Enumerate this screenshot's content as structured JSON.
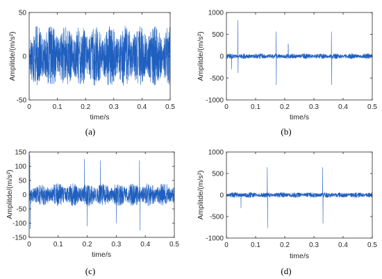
{
  "figure": {
    "signal_color": "#1f5fbf",
    "panels": [
      {
        "id": "a",
        "caption": "(a)",
        "ylabel": "Amplitde/(m/s²)",
        "xlabel": "time/s",
        "xticks": [
          "0",
          "0.1",
          "0.2",
          "0.3",
          "0.4",
          "0.5"
        ],
        "yticks": [
          "-50",
          "0",
          "50"
        ]
      },
      {
        "id": "b",
        "caption": "(b)",
        "ylabel": "Amplitde/(m/s²)",
        "xlabel": "time/s",
        "xticks": [
          "0",
          "0.1",
          "0.2",
          "0.3",
          "0.4",
          "0.5"
        ],
        "yticks": [
          "-1000",
          "-500",
          "0",
          "500",
          "1000"
        ]
      },
      {
        "id": "c",
        "caption": "(c)",
        "ylabel": "Amplitde/(m/s²)",
        "xlabel": "time/s",
        "xticks": [
          "0",
          "0.1",
          "0.2",
          "0.3",
          "0.4",
          "0.5"
        ],
        "yticks": [
          "-150",
          "-100",
          "-50",
          "0",
          "50",
          "100",
          "150"
        ]
      },
      {
        "id": "d",
        "caption": "(d)",
        "ylabel": "Amplitde/(m/s²)",
        "xlabel": "time/s",
        "xticks": [
          "0",
          "0.1",
          "0.2",
          "0.3",
          "0.4",
          "0.5"
        ],
        "yticks": [
          "-1000",
          "-500",
          "0",
          "500",
          "1000"
        ]
      }
    ]
  },
  "chart_data": [
    {
      "type": "line",
      "xlabel": "time/s",
      "ylabel": "Amplitde/(m/s²)",
      "xlim": [
        0,
        0.5
      ],
      "ylim": [
        -50,
        50
      ],
      "series": [
        {
          "noise_amplitude": 35,
          "impulses": []
        }
      ]
    },
    {
      "type": "line",
      "xlabel": "time/s",
      "ylabel": "Amplitde/(m/s²)",
      "xlim": [
        0,
        0.5
      ],
      "ylim": [
        -1000,
        1000
      ],
      "series": [
        {
          "noise_amplitude": 60,
          "impulses": [
            {
              "x": 0.018,
              "y": -300
            },
            {
              "x": 0.039,
              "y": 820
            },
            {
              "x": 0.04,
              "y": -380
            },
            {
              "x": 0.17,
              "y": 560
            },
            {
              "x": 0.171,
              "y": -650
            },
            {
              "x": 0.212,
              "y": 280
            },
            {
              "x": 0.36,
              "y": 560
            },
            {
              "x": 0.361,
              "y": -650
            }
          ]
        }
      ]
    },
    {
      "type": "line",
      "xlabel": "time/s",
      "ylabel": "Amplitde/(m/s²)",
      "xlim": [
        0,
        0.5
      ],
      "ylim": [
        -150,
        150
      ],
      "series": [
        {
          "noise_amplitude": 40,
          "impulses": [
            {
              "x": 0.002,
              "y": 140
            },
            {
              "x": 0.004,
              "y": -120
            },
            {
              "x": 0.19,
              "y": 125
            },
            {
              "x": 0.2,
              "y": -110
            },
            {
              "x": 0.245,
              "y": 120
            },
            {
              "x": 0.38,
              "y": 120
            },
            {
              "x": 0.382,
              "y": -125
            },
            {
              "x": 0.3,
              "y": -100
            }
          ]
        }
      ]
    },
    {
      "type": "line",
      "xlabel": "time/s",
      "ylabel": "Amplitde/(m/s²)",
      "xlim": [
        0,
        0.5
      ],
      "ylim": [
        -1000,
        1000
      ],
      "series": [
        {
          "noise_amplitude": 60,
          "impulses": [
            {
              "x": 0.05,
              "y": -300
            },
            {
              "x": 0.14,
              "y": 640
            },
            {
              "x": 0.141,
              "y": -760
            },
            {
              "x": 0.33,
              "y": 640
            },
            {
              "x": 0.331,
              "y": -660
            }
          ]
        }
      ]
    }
  ]
}
